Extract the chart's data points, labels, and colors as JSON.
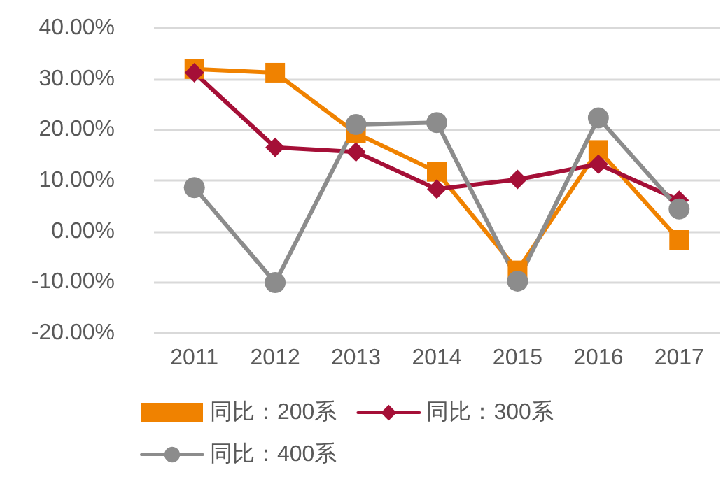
{
  "chart_data": {
    "type": "line",
    "categories": [
      "2011",
      "2012",
      "2013",
      "2014",
      "2015",
      "2016",
      "2017"
    ],
    "series": [
      {
        "name": "同比：200系",
        "color": "#f08200",
        "marker": "square",
        "values": [
          31.9,
          31.2,
          19.3,
          11.7,
          -7.7,
          16.0,
          -1.7
        ]
      },
      {
        "name": "同比：300系",
        "color": "#a50f37",
        "marker": "diamond",
        "values": [
          31.2,
          16.5,
          15.6,
          8.3,
          10.2,
          13.2,
          6.1
        ]
      },
      {
        "name": "同比：400系",
        "color": "#8c8c8c",
        "marker": "circle",
        "values": [
          8.6,
          -10.1,
          21.0,
          21.4,
          -9.8,
          22.3,
          4.4
        ]
      }
    ],
    "ylim": [
      -20,
      40
    ],
    "yticks": [
      {
        "value": -20,
        "label": "-20.00%"
      },
      {
        "value": -10,
        "label": "-10.00%"
      },
      {
        "value": 0,
        "label": "0.00%"
      },
      {
        "value": 10,
        "label": "10.00%"
      },
      {
        "value": 20,
        "label": "20.00%"
      },
      {
        "value": 30,
        "label": "30.00%"
      },
      {
        "value": 40,
        "label": "40.00%"
      }
    ],
    "grid": "y",
    "legend": "bottom left",
    "line_style": "solid"
  }
}
